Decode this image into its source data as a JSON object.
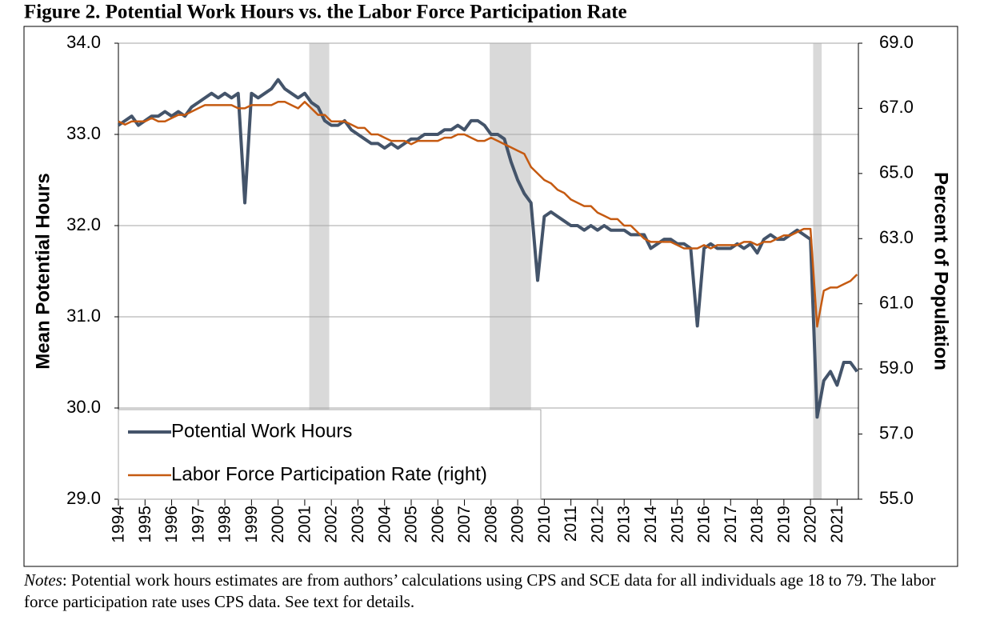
{
  "chart_data": {
    "type": "line",
    "title": "Figure 2. Potential Work Hours vs. the Labor Force Participation Rate",
    "y_label": "Mean Potential Hours",
    "y2_label": "Percent of Population",
    "notes_label": "Notes",
    "notes_text": ": Potential work hours estimates are from authors’ calculations using CPS and SCE data for all individuals age 18 to 79. The labor force participation rate uses CPS data. See text for details.",
    "x": [
      1994,
      1994.25,
      1994.5,
      1994.75,
      1995,
      1995.25,
      1995.5,
      1995.75,
      1996,
      1996.25,
      1996.5,
      1996.75,
      1997,
      1997.25,
      1997.5,
      1997.75,
      1998,
      1998.25,
      1998.5,
      1998.75,
      1999,
      1999.25,
      1999.5,
      1999.75,
      2000,
      2000.25,
      2000.5,
      2000.75,
      2001,
      2001.25,
      2001.5,
      2001.75,
      2002,
      2002.25,
      2002.5,
      2002.75,
      2003,
      2003.25,
      2003.5,
      2003.75,
      2004,
      2004.25,
      2004.5,
      2004.75,
      2005,
      2005.25,
      2005.5,
      2005.75,
      2006,
      2006.25,
      2006.5,
      2006.75,
      2007,
      2007.25,
      2007.5,
      2007.75,
      2008,
      2008.25,
      2008.5,
      2008.75,
      2009,
      2009.25,
      2009.5,
      2009.75,
      2010,
      2010.25,
      2010.5,
      2010.75,
      2011,
      2011.25,
      2011.5,
      2011.75,
      2012,
      2012.25,
      2012.5,
      2012.75,
      2013,
      2013.25,
      2013.5,
      2013.75,
      2014,
      2014.25,
      2014.5,
      2014.75,
      2015,
      2015.25,
      2015.5,
      2015.75,
      2016,
      2016.25,
      2016.5,
      2016.75,
      2017,
      2017.25,
      2017.5,
      2017.75,
      2018,
      2018.25,
      2018.5,
      2018.75,
      2019,
      2019.25,
      2019.5,
      2019.75,
      2020,
      2020.25,
      2020.5,
      2020.75,
      2021,
      2021.25,
      2021.5,
      2021.75
    ],
    "series": [
      {
        "name": "Potential Work Hours",
        "color": "#44546a",
        "axis": "y",
        "values": [
          33.1,
          33.15,
          33.2,
          33.1,
          33.15,
          33.2,
          33.2,
          33.25,
          33.2,
          33.25,
          33.2,
          33.3,
          33.35,
          33.4,
          33.45,
          33.4,
          33.45,
          33.4,
          33.45,
          32.25,
          33.45,
          33.4,
          33.45,
          33.5,
          33.6,
          33.5,
          33.45,
          33.4,
          33.45,
          33.35,
          33.3,
          33.15,
          33.1,
          33.1,
          33.15,
          33.05,
          33.0,
          32.95,
          32.9,
          32.9,
          32.85,
          32.9,
          32.85,
          32.9,
          32.95,
          32.95,
          33.0,
          33.0,
          33.0,
          33.05,
          33.05,
          33.1,
          33.05,
          33.15,
          33.15,
          33.1,
          33.0,
          33.0,
          32.95,
          32.7,
          32.5,
          32.35,
          32.25,
          31.4,
          32.1,
          32.15,
          32.1,
          32.05,
          32.0,
          32.0,
          31.95,
          32.0,
          31.95,
          32.0,
          31.95,
          31.95,
          31.95,
          31.9,
          31.9,
          31.9,
          31.75,
          31.8,
          31.85,
          31.85,
          31.8,
          31.8,
          31.75,
          30.9,
          31.75,
          31.8,
          31.75,
          31.75,
          31.75,
          31.8,
          31.75,
          31.8,
          31.7,
          31.85,
          31.9,
          31.85,
          31.85,
          31.9,
          31.95,
          31.9,
          31.85,
          29.9,
          30.3,
          30.4,
          30.25,
          30.5,
          30.5,
          30.4
        ]
      },
      {
        "name": "Labor Force Participation Rate (right)",
        "color": "#c55a11",
        "axis": "y2",
        "values": [
          66.6,
          66.5,
          66.6,
          66.6,
          66.6,
          66.7,
          66.6,
          66.6,
          66.7,
          66.8,
          66.8,
          66.9,
          67.0,
          67.1,
          67.1,
          67.1,
          67.1,
          67.1,
          67.0,
          67.0,
          67.1,
          67.1,
          67.1,
          67.1,
          67.2,
          67.2,
          67.1,
          67.0,
          67.2,
          67.0,
          66.8,
          66.8,
          66.6,
          66.6,
          66.6,
          66.5,
          66.4,
          66.4,
          66.2,
          66.2,
          66.1,
          66.0,
          66.0,
          66.0,
          65.9,
          66.0,
          66.0,
          66.0,
          66.0,
          66.1,
          66.1,
          66.2,
          66.2,
          66.1,
          66.0,
          66.0,
          66.1,
          66.0,
          65.9,
          65.8,
          65.7,
          65.6,
          65.2,
          65.0,
          64.8,
          64.7,
          64.5,
          64.4,
          64.2,
          64.1,
          64.0,
          64.0,
          63.8,
          63.7,
          63.6,
          63.6,
          63.4,
          63.4,
          63.2,
          63.0,
          62.9,
          62.9,
          62.9,
          62.9,
          62.8,
          62.7,
          62.7,
          62.7,
          62.8,
          62.7,
          62.8,
          62.8,
          62.8,
          62.8,
          62.9,
          62.9,
          62.8,
          62.9,
          62.9,
          63.0,
          63.1,
          63.1,
          63.2,
          63.3,
          63.3,
          60.3,
          61.4,
          61.5,
          61.5,
          61.6,
          61.7,
          61.9
        ]
      }
    ],
    "recessions": [
      [
        2001.17,
        2001.92
      ],
      [
        2007.95,
        2009.5
      ],
      [
        2020.1,
        2020.42
      ]
    ],
    "recession_color": "#d9d9d9",
    "xlim": [
      1994,
      2021.8
    ],
    "xticks": [
      1994,
      1995,
      1996,
      1997,
      1998,
      1999,
      2000,
      2001,
      2002,
      2003,
      2004,
      2005,
      2006,
      2007,
      2008,
      2009,
      2010,
      2011,
      2012,
      2013,
      2014,
      2015,
      2016,
      2017,
      2018,
      2019,
      2020,
      2021
    ],
    "ylim": [
      29,
      34
    ],
    "yticks": [
      {
        "value": 29,
        "label": "29.0"
      },
      {
        "value": 30,
        "label": "30.0"
      },
      {
        "value": 31,
        "label": "31.0"
      },
      {
        "value": 32,
        "label": "32.0"
      },
      {
        "value": 33,
        "label": "33.0"
      },
      {
        "value": 34,
        "label": "34.0"
      }
    ],
    "y2lim": [
      55,
      69
    ],
    "y2ticks": [
      {
        "value": 55,
        "label": "55.0"
      },
      {
        "value": 57,
        "label": "57.0"
      },
      {
        "value": 59,
        "label": "59.0"
      },
      {
        "value": 61,
        "label": "61.0"
      },
      {
        "value": 63,
        "label": "63.0"
      },
      {
        "value": 65,
        "label": "65.0"
      },
      {
        "value": 67,
        "label": "67.0"
      },
      {
        "value": 69,
        "label": "69.0"
      }
    ],
    "grid": true,
    "legend": "lower-left"
  }
}
